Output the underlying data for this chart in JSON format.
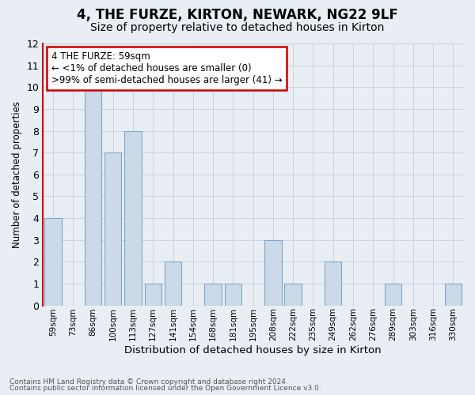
{
  "title": "4, THE FURZE, KIRTON, NEWARK, NG22 9LF",
  "subtitle": "Size of property relative to detached houses in Kirton",
  "xlabel": "Distribution of detached houses by size in Kirton",
  "ylabel": "Number of detached properties",
  "footnote1": "Contains HM Land Registry data © Crown copyright and database right 2024.",
  "footnote2": "Contains public sector information licensed under the Open Government Licence v3.0.",
  "categories": [
    "59sqm",
    "73sqm",
    "86sqm",
    "100sqm",
    "113sqm",
    "127sqm",
    "141sqm",
    "154sqm",
    "168sqm",
    "181sqm",
    "195sqm",
    "208sqm",
    "222sqm",
    "235sqm",
    "249sqm",
    "262sqm",
    "276sqm",
    "289sqm",
    "303sqm",
    "316sqm",
    "330sqm"
  ],
  "values": [
    4,
    0,
    10,
    7,
    8,
    1,
    2,
    0,
    1,
    1,
    0,
    3,
    1,
    0,
    2,
    0,
    0,
    1,
    0,
    0,
    1
  ],
  "bar_color": "#ccd9e8",
  "bar_edge_color": "#7fa8c8",
  "highlight_bar_index": 0,
  "annotation_line1": "4 THE FURZE: 59sqm",
  "annotation_line2": "← <1% of detached houses are smaller (0)",
  "annotation_line3": ">99% of semi-detached houses are larger (41) →",
  "annotation_box_color": "white",
  "annotation_box_edge_color": "#cc0000",
  "ylim": [
    0,
    12
  ],
  "yticks": [
    0,
    1,
    2,
    3,
    4,
    5,
    6,
    7,
    8,
    9,
    10,
    11,
    12
  ],
  "grid_color": "#c8d4e0",
  "background_color": "#e8eef4",
  "left_spine_color": "#cc0000",
  "title_fontsize": 12,
  "subtitle_fontsize": 10
}
